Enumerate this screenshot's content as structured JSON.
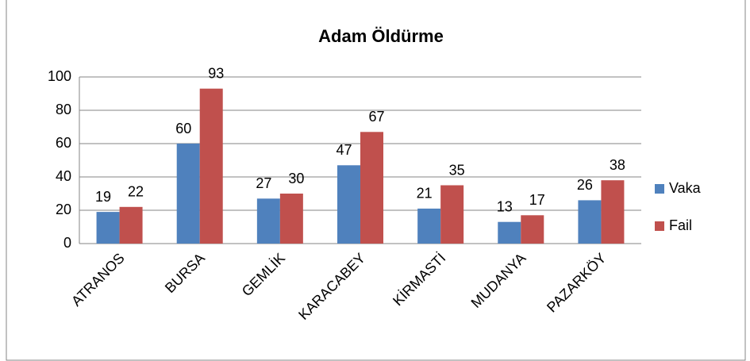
{
  "chart_data": {
    "type": "bar",
    "title": "Adam Öldürme",
    "categories": [
      "ATRANOS",
      "BURSA",
      "GEMLİK",
      "KARACABEY",
      "KİRMASTİ",
      "MUDANYA",
      "PAZARKÖY"
    ],
    "series": [
      {
        "name": "Vaka",
        "color": "#4f81bd",
        "values": [
          19,
          60,
          27,
          47,
          21,
          13,
          26
        ]
      },
      {
        "name": "Fail",
        "color": "#c0504d",
        "values": [
          22,
          93,
          30,
          67,
          35,
          17,
          38
        ]
      }
    ],
    "ylim": [
      0,
      100
    ],
    "yticks": [
      0,
      20,
      40,
      60,
      80,
      100
    ],
    "grid": true,
    "legend": "right"
  }
}
